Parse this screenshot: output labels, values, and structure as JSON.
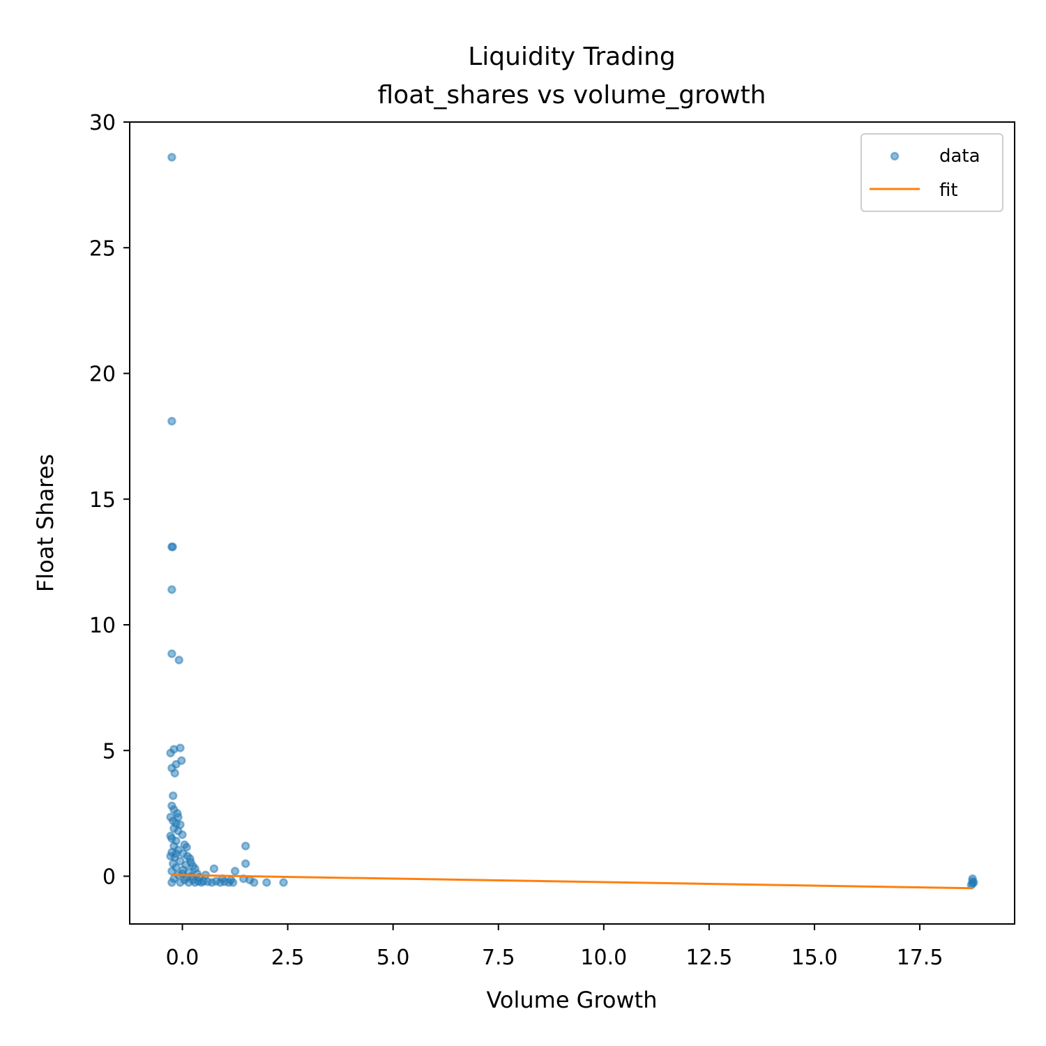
{
  "chart_data": {
    "type": "scatter",
    "title": "Liquidity Trading",
    "subtitle": "float_shares vs volume_growth",
    "xlabel": "Volume Growth",
    "ylabel": "Float Shares",
    "xlim": [
      -1.25,
      19.75
    ],
    "ylim": [
      -1.9,
      30.0
    ],
    "x_ticks": [
      0.0,
      2.5,
      5.0,
      7.5,
      10.0,
      12.5,
      15.0,
      17.5
    ],
    "x_tick_labels": [
      "0.0",
      "2.5",
      "5.0",
      "7.5",
      "10.0",
      "12.5",
      "15.0",
      "17.5"
    ],
    "y_ticks": [
      0,
      5,
      10,
      15,
      20,
      25,
      30
    ],
    "y_tick_labels": [
      "0",
      "5",
      "10",
      "15",
      "20",
      "25",
      "30"
    ],
    "grid": false,
    "legend": {
      "position": "top-right",
      "entries": [
        "data",
        "fit"
      ]
    },
    "colors": {
      "data": "#1f77b4",
      "fit": "#ff7f0e"
    },
    "series": [
      {
        "name": "data",
        "kind": "scatter",
        "points": [
          [
            -0.25,
            28.6
          ],
          [
            -0.25,
            18.1
          ],
          [
            -0.23,
            13.1
          ],
          [
            -0.25,
            13.1
          ],
          [
            -0.25,
            11.4
          ],
          [
            -0.25,
            8.85
          ],
          [
            -0.08,
            8.6
          ],
          [
            -0.05,
            5.1
          ],
          [
            -0.2,
            5.05
          ],
          [
            -0.28,
            4.9
          ],
          [
            -0.15,
            4.45
          ],
          [
            -0.25,
            4.3
          ],
          [
            -0.02,
            4.6
          ],
          [
            -0.18,
            4.1
          ],
          [
            -0.22,
            3.2
          ],
          [
            -0.25,
            2.8
          ],
          [
            -0.2,
            2.65
          ],
          [
            -0.12,
            2.5
          ],
          [
            -0.28,
            2.35
          ],
          [
            -0.22,
            2.2
          ],
          [
            -0.15,
            2.1
          ],
          [
            -0.05,
            2.05
          ],
          [
            -0.2,
            1.9
          ],
          [
            -0.1,
            1.8
          ],
          [
            0.0,
            1.65
          ],
          [
            -0.25,
            1.5
          ],
          [
            -0.15,
            1.4
          ],
          [
            0.05,
            1.25
          ],
          [
            -0.2,
            1.2
          ],
          [
            0.1,
            1.15
          ],
          [
            -0.1,
            1.05
          ],
          [
            -0.25,
            0.95
          ],
          [
            0.02,
            0.9
          ],
          [
            0.12,
            0.8
          ],
          [
            -0.18,
            0.75
          ],
          [
            0.18,
            0.7
          ],
          [
            -0.05,
            0.6
          ],
          [
            0.2,
            0.55
          ],
          [
            -0.22,
            0.5
          ],
          [
            0.08,
            0.45
          ],
          [
            0.25,
            0.4
          ],
          [
            -0.15,
            0.35
          ],
          [
            0.3,
            0.3
          ],
          [
            0.02,
            0.25
          ],
          [
            -0.25,
            0.2
          ],
          [
            0.15,
            0.15
          ],
          [
            0.35,
            0.1
          ],
          [
            -0.1,
            0.05
          ],
          [
            0.22,
            0.0
          ],
          [
            0.4,
            -0.05
          ],
          [
            -0.2,
            -0.1
          ],
          [
            0.05,
            -0.15
          ],
          [
            0.5,
            -0.2
          ],
          [
            -0.25,
            -0.25
          ],
          [
            0.3,
            -0.25
          ],
          [
            0.6,
            -0.22
          ],
          [
            0.7,
            -0.25
          ],
          [
            0.8,
            -0.2
          ],
          [
            0.9,
            -0.25
          ],
          [
            1.0,
            -0.22
          ],
          [
            1.1,
            -0.25
          ],
          [
            1.2,
            -0.25
          ],
          [
            0.45,
            -0.25
          ],
          [
            0.15,
            -0.25
          ],
          [
            -0.05,
            -0.25
          ],
          [
            0.75,
            0.3
          ],
          [
            1.25,
            0.2
          ],
          [
            1.5,
            0.5
          ],
          [
            1.5,
            1.2
          ],
          [
            1.45,
            -0.1
          ],
          [
            1.6,
            -0.15
          ],
          [
            1.7,
            -0.25
          ],
          [
            2.0,
            -0.25
          ],
          [
            2.4,
            -0.25
          ],
          [
            0.55,
            0.05
          ],
          [
            0.95,
            -0.1
          ],
          [
            1.15,
            -0.15
          ],
          [
            -0.28,
            0.8
          ],
          [
            -0.28,
            1.6
          ],
          [
            -0.1,
            2.35
          ],
          [
            0.0,
            0.1
          ],
          [
            0.1,
            -0.05
          ],
          [
            -0.15,
            0.9
          ],
          [
            0.25,
            -0.15
          ],
          [
            0.38,
            -0.2
          ],
          [
            18.75,
            -0.1
          ],
          [
            18.75,
            -0.2
          ],
          [
            18.75,
            -0.3
          ],
          [
            18.78,
            -0.25
          ],
          [
            18.72,
            -0.35
          ]
        ]
      },
      {
        "name": "fit",
        "kind": "line",
        "points": [
          [
            -0.25,
            0.05
          ],
          [
            18.75,
            -0.48
          ]
        ]
      }
    ]
  }
}
